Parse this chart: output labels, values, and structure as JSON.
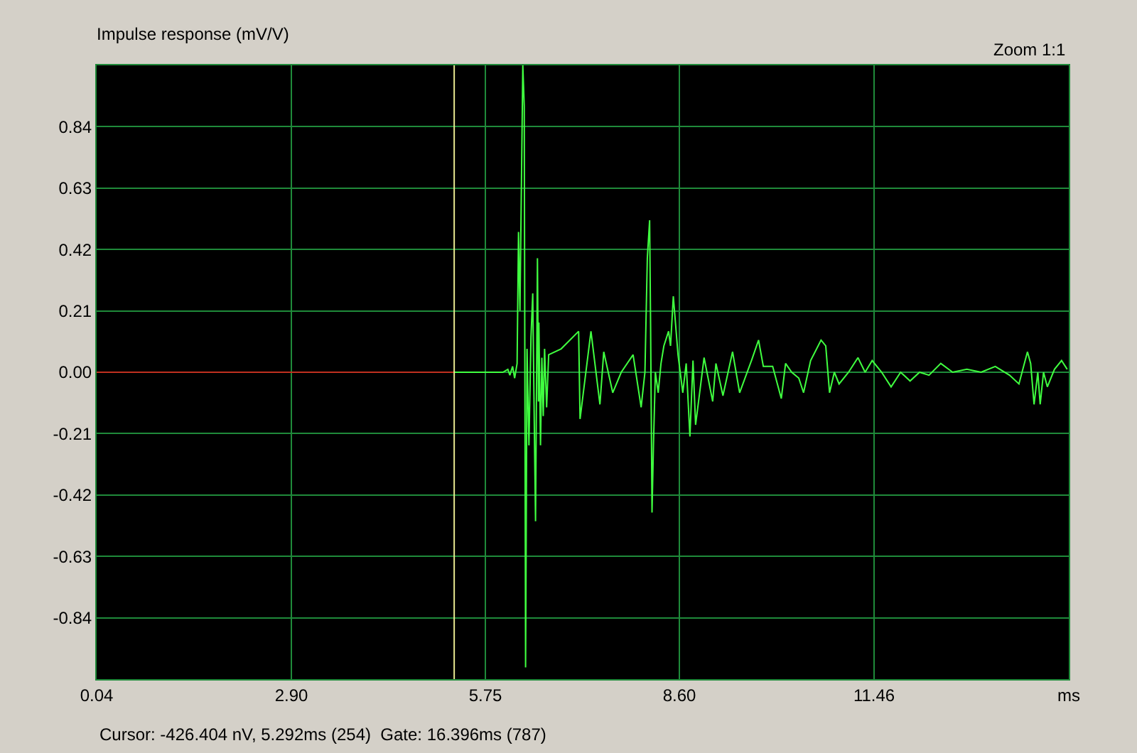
{
  "chart_data": {
    "type": "line",
    "title": "Impulse response (mV/V)",
    "xlim": [
      0.04,
      14.32
    ],
    "ylim": [
      -1.05,
      1.05
    ],
    "xticks": [
      0.04,
      {
        "value": 2.9,
        "label": "2.90"
      },
      5.75,
      {
        "value": 8.6,
        "label": "8.60"
      },
      11.46,
      {
        "value": 14.32,
        "label": "ms"
      }
    ],
    "yticks": [
      -0.84,
      -0.63,
      -0.42,
      -0.21,
      {
        "value": 0,
        "label": "0.00"
      },
      0.21,
      0.42,
      0.63,
      0.84
    ],
    "grid": true,
    "marker": "none",
    "line_style": "solid",
    "ref_lines": [
      {
        "axis": "x",
        "value": 5.292,
        "color": "#e8e890"
      }
    ],
    "annotations": [
      "Zoom 1:1",
      "Cursor: -426.404 nV, 5.292ms (254)  Gate: 16.396ms (787)"
    ],
    "series": [
      {
        "color": "#c03020",
        "x": [
          0.04,
          5.292
        ],
        "values": [
          0,
          0
        ]
      },
      {
        "color": "#40ff40",
        "x": [
          5.292,
          6.008,
          6.08,
          6.11,
          6.15,
          6.18,
          6.216,
          6.237,
          6.258,
          6.3,
          6.321,
          6.341,
          6.362,
          6.39,
          6.42,
          6.446,
          6.47,
          6.487,
          6.515,
          6.53,
          6.536,
          6.56,
          6.58,
          6.6,
          6.62,
          6.65,
          6.68,
          6.863,
          7.12,
          7.141,
          7.301,
          7.433,
          7.489,
          7.621,
          7.746,
          7.92,
          8.038,
          8.094,
          8.129,
          8.163,
          8.177,
          8.198,
          8.219,
          8.247,
          8.289,
          8.33,
          8.372,
          8.441,
          8.47,
          8.511,
          8.58,
          8.65,
          8.7,
          8.755,
          8.8,
          8.838,
          8.963,
          9.089,
          9.137,
          9.24,
          9.381,
          9.485,
          9.659,
          9.763,
          9.833,
          9.97,
          10.097,
          10.16,
          10.25,
          10.354,
          10.424,
          10.528,
          10.681,
          10.75,
          10.806,
          10.876,
          10.946,
          11.085,
          11.223,
          11.328,
          11.432,
          11.571,
          11.71,
          11.85,
          11.989,
          12.128,
          12.267,
          12.44,
          12.614,
          12.823,
          13.032,
          13.24,
          13.449,
          13.588,
          13.713,
          13.76,
          13.81,
          13.865,
          13.9,
          13.949,
          14.005,
          14.11,
          14.214,
          14.297
        ],
        "values": [
          0,
          0,
          0.01,
          -0.01,
          0.02,
          -0.02,
          0.03,
          0.48,
          0.21,
          1.05,
          0.91,
          -1.01,
          0.08,
          -0.25,
          0.12,
          0.27,
          -0.2,
          -0.51,
          0.39,
          -0.1,
          0.17,
          -0.25,
          0.05,
          -0.15,
          0.08,
          -0.12,
          0.06,
          0.08,
          0.14,
          -0.16,
          0.14,
          -0.11,
          0.07,
          -0.07,
          0,
          0.06,
          -0.12,
          0,
          0.39,
          0.52,
          0.16,
          -0.48,
          -0.25,
          0,
          -0.07,
          0.03,
          0.09,
          0.14,
          0.09,
          0.26,
          0.06,
          -0.07,
          0.03,
          -0.22,
          0.04,
          -0.18,
          0.05,
          -0.1,
          0.03,
          -0.08,
          0.07,
          -0.07,
          0.04,
          0.11,
          0.02,
          0.02,
          -0.09,
          0.03,
          0,
          -0.02,
          -0.07,
          0.04,
          0.11,
          0.09,
          -0.07,
          0,
          -0.04,
          0,
          0.05,
          0,
          0.04,
          0,
          -0.05,
          0,
          -0.03,
          0,
          -0.01,
          0.03,
          0,
          0.01,
          0,
          0.02,
          -0.01,
          -0.04,
          0.07,
          0.03,
          -0.11,
          0,
          -0.11,
          0,
          -0.05,
          0.01,
          0.04,
          0.01
        ]
      }
    ]
  }
}
